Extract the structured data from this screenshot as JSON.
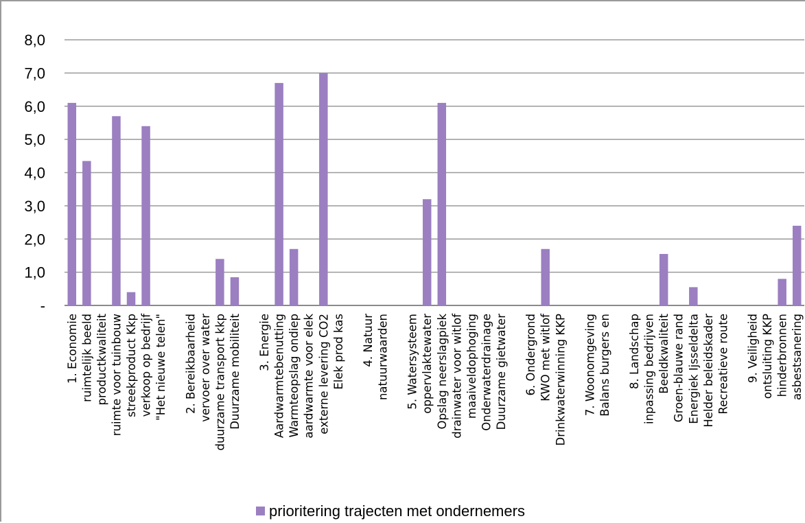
{
  "chart_data": {
    "type": "bar",
    "title": "",
    "xlabel": "",
    "ylabel": "",
    "ylim": [
      0,
      8
    ],
    "y_ticks": [
      {
        "value": 0,
        "label": "-"
      },
      {
        "value": 1,
        "label": "1,0"
      },
      {
        "value": 2,
        "label": "2,0"
      },
      {
        "value": 3,
        "label": "3,0"
      },
      {
        "value": 4,
        "label": "4,0"
      },
      {
        "value": 5,
        "label": "5,0"
      },
      {
        "value": 6,
        "label": "6,0"
      },
      {
        "value": 7,
        "label": "7,0"
      },
      {
        "value": 8,
        "label": "8,0"
      }
    ],
    "grid": true,
    "legend_position": "bottom",
    "series_color": "#9b7fc1",
    "categories": [
      "1. Economie",
      "ruimtelijk beeld",
      "productkwaliteit",
      "ruimte voor tuinbouw",
      "streekproduct Kkp",
      "verkoop op bedrijf",
      "\"Het nieuwe telen\"",
      "",
      "2. Bereikbaarheid",
      "vervoer over water",
      "duurzame transport kkp",
      "Duurzame mobiliteit",
      "",
      "3. Energie",
      "Aardwarmtebenutting",
      "Warmteopslag ondiep",
      "aardwarmte voor elek",
      "externe levering CO2",
      "Elek prod kas",
      "",
      "4. Natuur",
      "natuurwaarden",
      "",
      "5. Watersysteem",
      "oppervlaktewater",
      "Opslag neerslagpiek",
      "drainwater voor witlof",
      "maaiveldophoging",
      "Onderwaterdrainage",
      "Duurzame gietwater",
      "",
      "6. Ondergrond",
      "KWO met witlof",
      "Drinkwaterwinning  KKP",
      "",
      "7. Woonomgeving",
      "Balans burgers en",
      "",
      "8. Landschap",
      "inpassing bedrijven",
      "Beeldkwaliteit",
      "Groen-blauwe rand",
      "Energiek Ijsseldelta",
      "Helder beleidskader",
      "Recreatieve route",
      "",
      "9. Veiligheid",
      "ontsluiting KKP",
      "hinderbronnen",
      "asbestsanering"
    ],
    "series": [
      {
        "name": "prioritering trajecten met ondernemers",
        "values": [
          6.1,
          4.35,
          0,
          5.7,
          0.4,
          5.4,
          0,
          0,
          0,
          0,
          1.4,
          0.85,
          0,
          0,
          6.7,
          1.7,
          0,
          7.0,
          0,
          0,
          0,
          0,
          0,
          0,
          3.2,
          6.1,
          0,
          0,
          0,
          0,
          0,
          0,
          1.7,
          0,
          0,
          0,
          0,
          0,
          0,
          0,
          1.55,
          0,
          0.55,
          0,
          0,
          0,
          0,
          0,
          0.8,
          2.4
        ]
      }
    ]
  }
}
